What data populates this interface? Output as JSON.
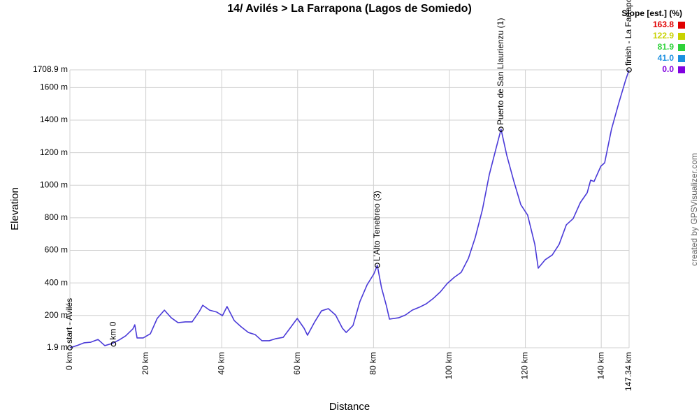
{
  "chart_data": {
    "type": "line",
    "title": "14/ Avilés > La Farrapona (Lagos de Somiedo)",
    "x_label": "Distance",
    "y_label": "Elevation",
    "credit": "created by GPSVisualizer.com",
    "color": "#4a3ad8",
    "grid": true,
    "xlim": [
      0,
      147.34
    ],
    "ylim": [
      1.9,
      1708.9
    ],
    "xticks": [
      {
        "value": 0,
        "label": "0 km"
      },
      {
        "value": 20,
        "label": "20 km"
      },
      {
        "value": 40,
        "label": "40 km"
      },
      {
        "value": 60,
        "label": "60 km"
      },
      {
        "value": 80,
        "label": "80 km"
      },
      {
        "value": 100,
        "label": "100 km"
      },
      {
        "value": 120,
        "label": "120 km"
      },
      {
        "value": 140,
        "label": "140 km"
      },
      {
        "value": 147.34,
        "label": "147.34 km"
      }
    ],
    "yticks": [
      {
        "value": 1.9,
        "label": "1.9 m"
      },
      {
        "value": 200,
        "label": "200 m"
      },
      {
        "value": 400,
        "label": "400 m"
      },
      {
        "value": 600,
        "label": "600 m"
      },
      {
        "value": 800,
        "label": "800 m"
      },
      {
        "value": 1000,
        "label": "1000 m"
      },
      {
        "value": 1200,
        "label": "1200 m"
      },
      {
        "value": 1400,
        "label": "1400 m"
      },
      {
        "value": 1600,
        "label": "1600 m"
      },
      {
        "value": 1708.9,
        "label": "1708.9 m"
      }
    ],
    "x": [
      0,
      1.8,
      3.7,
      5.5,
      7.4,
      9.2,
      11.1,
      12.9,
      14.7,
      16.6,
      17.1,
      17.7,
      19.3,
      21.2,
      23.0,
      24.9,
      26.7,
      28.5,
      30.4,
      32.2,
      34.1,
      35.0,
      36.8,
      38.7,
      40.2,
      41.4,
      43.3,
      45.1,
      47.0,
      48.8,
      50.6,
      52.5,
      54.3,
      56.2,
      58.0,
      59.9,
      61.7,
      62.6,
      64.5,
      66.3,
      68.1,
      70.0,
      71.8,
      72.8,
      74.6,
      76.4,
      78.3,
      80.1,
      81.0,
      82.1,
      83.4,
      84.2,
      86.6,
      88.4,
      90.2,
      92.1,
      93.9,
      95.8,
      97.6,
      99.4,
      101.3,
      103.1,
      105.0,
      106.8,
      108.7,
      110.5,
      112.4,
      113.6,
      115.1,
      117.0,
      118.8,
      120.6,
      122.5,
      123.4,
      125.2,
      127.1,
      128.9,
      130.8,
      132.6,
      134.5,
      136.3,
      137.2,
      138.1,
      139.9,
      140.9,
      142.7,
      144.6,
      146.4,
      147.34
    ],
    "values": [
      2,
      15,
      32,
      36,
      53,
      15,
      28,
      49,
      75,
      118,
      143,
      62,
      62,
      88,
      182,
      233,
      186,
      156,
      161,
      161,
      225,
      263,
      233,
      221,
      199,
      255,
      169,
      131,
      96,
      83,
      45,
      45,
      58,
      66,
      122,
      182,
      122,
      79,
      161,
      229,
      242,
      203,
      122,
      96,
      139,
      285,
      388,
      456,
      508,
      371,
      259,
      178,
      186,
      203,
      233,
      251,
      272,
      306,
      345,
      396,
      435,
      465,
      551,
      679,
      851,
      1065,
      1237,
      1344,
      1185,
      1022,
      881,
      817,
      637,
      491,
      542,
      572,
      637,
      757,
      795,
      894,
      954,
      1031,
      1023,
      1117,
      1138,
      1344,
      1503,
      1644,
      1708.9
    ],
    "annotations": [
      {
        "x": 0,
        "y": 1.9,
        "text": "start - Avilés"
      },
      {
        "x": 11.5,
        "y": 25,
        "text": "km 0"
      },
      {
        "x": 81.0,
        "y": 508,
        "text": "L'Alto Tenebreo (3)"
      },
      {
        "x": 113.6,
        "y": 1344,
        "text": "Puerto de San Llaurienzu (1)"
      },
      {
        "x": 147.34,
        "y": 1708.9,
        "text": "finish - La Farrapona"
      }
    ],
    "color_scale": {
      "title": "Slope [est.] (%)",
      "stops": [
        {
          "value": 163.8,
          "color": "#e00000"
        },
        {
          "value": 122.9,
          "color": "#c8d200"
        },
        {
          "value": 81.9,
          "color": "#2ed23a"
        },
        {
          "value": 41.0,
          "label": "41.0",
          "color": "#1a8fe0"
        },
        {
          "value": 0.0,
          "label": "0.0",
          "color": "#8000e0"
        }
      ]
    }
  }
}
